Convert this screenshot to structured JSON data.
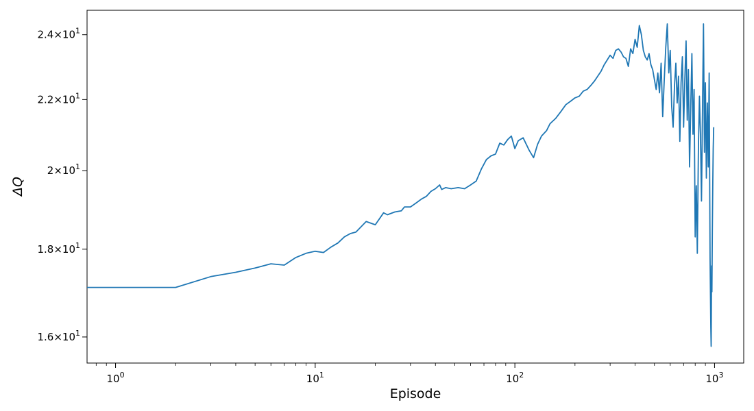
{
  "chart_data": {
    "type": "line",
    "title": "",
    "xlabel": "Episode",
    "ylabel": "ΔQ",
    "x_scale": "log",
    "y_scale": "log",
    "xlim": [
      0.72,
      1400
    ],
    "ylim": [
      15.45,
      24.8
    ],
    "grid": false,
    "legend": "none",
    "line_color": "#1f77b4",
    "x_ticks": [
      {
        "value": 1,
        "base": "10",
        "exp": "0"
      },
      {
        "value": 10,
        "base": "10",
        "exp": "1"
      },
      {
        "value": 100,
        "base": "10",
        "exp": "2"
      },
      {
        "value": 1000,
        "base": "10",
        "exp": "3"
      }
    ],
    "y_ticks": [
      {
        "value": 16,
        "mantissa": "1.6",
        "base": "10",
        "exp": "1"
      },
      {
        "value": 18,
        "mantissa": "1.8",
        "base": "10",
        "exp": "1"
      },
      {
        "value": 20,
        "mantissa": "2",
        "base": "10",
        "exp": "1"
      },
      {
        "value": 22,
        "mantissa": "2.2",
        "base": "10",
        "exp": "1"
      },
      {
        "value": 24,
        "mantissa": "2.4",
        "base": "10",
        "exp": "1"
      }
    ],
    "series": [
      {
        "points": [
          [
            0.72,
            17.1
          ],
          [
            2,
            17.1
          ],
          [
            3,
            17.35
          ],
          [
            4,
            17.45
          ],
          [
            5,
            17.55
          ],
          [
            6,
            17.65
          ],
          [
            7,
            17.62
          ],
          [
            8,
            17.8
          ],
          [
            9,
            17.9
          ],
          [
            10,
            17.95
          ],
          [
            11,
            17.92
          ],
          [
            12,
            18.05
          ],
          [
            13,
            18.15
          ],
          [
            14,
            18.3
          ],
          [
            15,
            18.38
          ],
          [
            16,
            18.42
          ],
          [
            18,
            18.68
          ],
          [
            20,
            18.6
          ],
          [
            22,
            18.9
          ],
          [
            23,
            18.85
          ],
          [
            25,
            18.92
          ],
          [
            27,
            18.95
          ],
          [
            28,
            19.05
          ],
          [
            30,
            19.05
          ],
          [
            32,
            19.15
          ],
          [
            34,
            19.25
          ],
          [
            36,
            19.32
          ],
          [
            38,
            19.45
          ],
          [
            40,
            19.52
          ],
          [
            42,
            19.62
          ],
          [
            43,
            19.5
          ],
          [
            45,
            19.55
          ],
          [
            48,
            19.52
          ],
          [
            52,
            19.55
          ],
          [
            56,
            19.52
          ],
          [
            60,
            19.62
          ],
          [
            64,
            19.72
          ],
          [
            68,
            20.05
          ],
          [
            72,
            20.3
          ],
          [
            76,
            20.4
          ],
          [
            80,
            20.45
          ],
          [
            84,
            20.75
          ],
          [
            88,
            20.7
          ],
          [
            92,
            20.85
          ],
          [
            96,
            20.95
          ],
          [
            100,
            20.6
          ],
          [
            104,
            20.82
          ],
          [
            110,
            20.9
          ],
          [
            118,
            20.55
          ],
          [
            124,
            20.35
          ],
          [
            130,
            20.72
          ],
          [
            136,
            20.95
          ],
          [
            144,
            21.1
          ],
          [
            150,
            21.3
          ],
          [
            160,
            21.45
          ],
          [
            170,
            21.65
          ],
          [
            180,
            21.85
          ],
          [
            190,
            21.95
          ],
          [
            200,
            22.05
          ],
          [
            210,
            22.1
          ],
          [
            220,
            22.25
          ],
          [
            230,
            22.3
          ],
          [
            240,
            22.42
          ],
          [
            250,
            22.55
          ],
          [
            260,
            22.7
          ],
          [
            270,
            22.85
          ],
          [
            280,
            23.05
          ],
          [
            290,
            23.2
          ],
          [
            300,
            23.35
          ],
          [
            310,
            23.25
          ],
          [
            320,
            23.5
          ],
          [
            330,
            23.55
          ],
          [
            340,
            23.45
          ],
          [
            350,
            23.3
          ],
          [
            360,
            23.25
          ],
          [
            370,
            23.0
          ],
          [
            380,
            23.55
          ],
          [
            390,
            23.4
          ],
          [
            400,
            23.85
          ],
          [
            410,
            23.6
          ],
          [
            420,
            24.3
          ],
          [
            430,
            24.0
          ],
          [
            440,
            23.5
          ],
          [
            450,
            23.3
          ],
          [
            460,
            23.2
          ],
          [
            470,
            23.4
          ],
          [
            480,
            23.05
          ],
          [
            490,
            22.9
          ],
          [
            500,
            22.6
          ],
          [
            510,
            22.3
          ],
          [
            520,
            22.8
          ],
          [
            530,
            22.2
          ],
          [
            540,
            23.1
          ],
          [
            550,
            21.5
          ],
          [
            560,
            22.6
          ],
          [
            570,
            23.6
          ],
          [
            580,
            24.35
          ],
          [
            590,
            22.8
          ],
          [
            600,
            23.5
          ],
          [
            610,
            21.8
          ],
          [
            620,
            21.2
          ],
          [
            630,
            22.4
          ],
          [
            640,
            23.1
          ],
          [
            650,
            21.9
          ],
          [
            660,
            22.7
          ],
          [
            670,
            20.8
          ],
          [
            680,
            22.5
          ],
          [
            690,
            23.3
          ],
          [
            700,
            21.2
          ],
          [
            710,
            22.6
          ],
          [
            720,
            23.8
          ],
          [
            730,
            21.4
          ],
          [
            740,
            22.9
          ],
          [
            750,
            20.1
          ],
          [
            760,
            21.8
          ],
          [
            770,
            23.4
          ],
          [
            780,
            21.0
          ],
          [
            790,
            22.3
          ],
          [
            800,
            18.3
          ],
          [
            810,
            19.6
          ],
          [
            820,
            17.9
          ],
          [
            830,
            20.6
          ],
          [
            840,
            22.1
          ],
          [
            850,
            21.0
          ],
          [
            860,
            19.2
          ],
          [
            870,
            21.6
          ],
          [
            880,
            24.35
          ],
          [
            890,
            20.5
          ],
          [
            900,
            22.5
          ],
          [
            910,
            19.8
          ],
          [
            920,
            21.9
          ],
          [
            930,
            20.1
          ],
          [
            940,
            22.8
          ],
          [
            950,
            17.8
          ],
          [
            958,
            16.2
          ],
          [
            962,
            15.8
          ],
          [
            966,
            17.6
          ],
          [
            970,
            17.0
          ],
          [
            975,
            18.4
          ],
          [
            980,
            19.7
          ],
          [
            985,
            20.6
          ],
          [
            990,
            21.2
          ]
        ]
      }
    ]
  }
}
